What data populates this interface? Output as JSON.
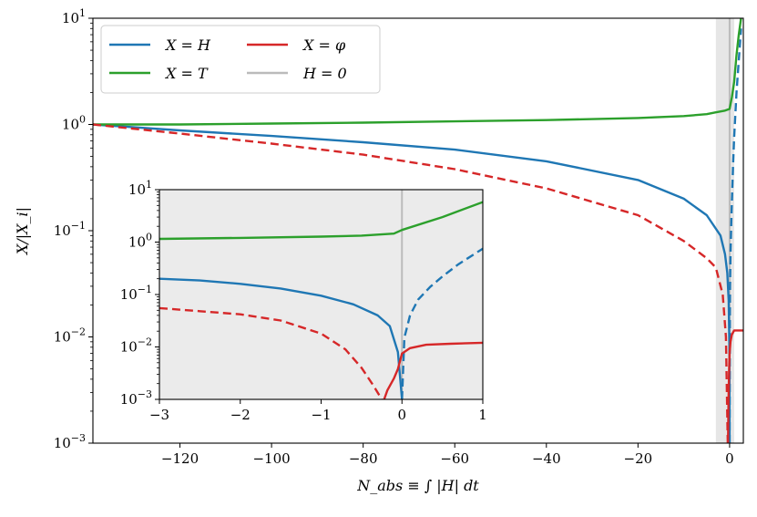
{
  "chart_data": [
    {
      "id": "main",
      "type": "line",
      "xlabel": "N_abs ≡ ∫ |H| dt",
      "ylabel": "X/|X_i|",
      "xlim": [
        -139,
        3
      ],
      "ylim": [
        0.001,
        10
      ],
      "yscale": "log",
      "grid": false,
      "legend_position": "top-left",
      "legend_columns": 2,
      "x_ticks": [
        -120,
        -100,
        -80,
        -60,
        -40,
        -20,
        0
      ],
      "x_tick_labels": [
        "−120",
        "−100",
        "−80",
        "−60",
        "−40",
        "−20",
        "0"
      ],
      "y_ticks": [
        0.001,
        0.01,
        0.1,
        1,
        10
      ],
      "y_tick_labels": [
        {
          "base": "10",
          "exp": "−3"
        },
        {
          "base": "10",
          "exp": "−2"
        },
        {
          "base": "10",
          "exp": "−1"
        },
        {
          "base": "10",
          "exp": "0"
        },
        {
          "base": "10",
          "exp": "1"
        }
      ],
      "shaded_region": {
        "x": [
          -3,
          1
        ],
        "color": "#e6e6e6"
      },
      "vline": {
        "x": 0,
        "name": "H = 0",
        "color": "#bbbbbb"
      },
      "series": [
        {
          "name": "X = H",
          "color": "#1f77b4",
          "style": "solid",
          "x": [
            -139,
            -120,
            -100,
            -80,
            -60,
            -40,
            -20,
            -10,
            -5,
            -2,
            -1,
            -0.5,
            -0.2,
            -0.05,
            0
          ],
          "y": [
            1,
            0.88,
            0.78,
            0.68,
            0.58,
            0.45,
            0.3,
            0.2,
            0.14,
            0.09,
            0.06,
            0.04,
            0.022,
            0.008,
            0.001
          ]
        },
        {
          "name": "X = H",
          "color": "#1f77b4",
          "style": "dashed",
          "x": [
            0,
            0.05,
            0.1,
            0.2,
            0.4,
            0.6,
            0.8,
            1,
            1.5,
            2.5
          ],
          "y": [
            0.001,
            0.015,
            0.03,
            0.06,
            0.13,
            0.25,
            0.45,
            0.75,
            2,
            8
          ]
        },
        {
          "name": "X = T",
          "color": "#2ca02c",
          "style": "solid",
          "x": [
            -139,
            -120,
            -100,
            -80,
            -60,
            -40,
            -20,
            -10,
            -5,
            -3,
            -1,
            0,
            0.5,
            1,
            1.5,
            2,
            2.5
          ],
          "y": [
            1,
            1,
            1.02,
            1.04,
            1.07,
            1.1,
            1.15,
            1.2,
            1.25,
            1.3,
            1.35,
            1.4,
            1.8,
            2.5,
            4.5,
            7,
            10
          ]
        },
        {
          "name": "X = φ",
          "color": "#d62728",
          "style": "dashed",
          "x": [
            -139,
            -120,
            -100,
            -80,
            -60,
            -40,
            -20,
            -10,
            -5,
            -3,
            -1.5,
            -0.8,
            -0.4
          ],
          "y": [
            1,
            0.82,
            0.66,
            0.52,
            0.38,
            0.25,
            0.14,
            0.08,
            0.055,
            0.045,
            0.025,
            0.01,
            0.001
          ]
        },
        {
          "name": "X = φ",
          "color": "#d62728",
          "style": "solid",
          "x": [
            -0.35,
            -0.25,
            -0.1,
            0,
            0.2,
            0.5,
            1,
            3
          ],
          "y": [
            0.001,
            0.0025,
            0.005,
            0.007,
            0.009,
            0.0105,
            0.0115,
            0.0115
          ]
        }
      ],
      "legend": [
        {
          "label": "X = H",
          "color": "#1f77b4"
        },
        {
          "label": "X = T",
          "color": "#2ca02c"
        },
        {
          "label": "X = φ",
          "color": "#d62728"
        },
        {
          "label": "H = 0",
          "color": "#bbbbbb"
        }
      ]
    },
    {
      "id": "inset",
      "type": "line",
      "xlim": [
        -3,
        1
      ],
      "ylim": [
        0.001,
        10
      ],
      "yscale": "log",
      "background": "#ebebeb",
      "x_ticks": [
        -3,
        -2,
        -1,
        0,
        1
      ],
      "x_tick_labels": [
        "−3",
        "−2",
        "−1",
        "0",
        "1"
      ],
      "y_ticks": [
        0.001,
        0.01,
        0.1,
        1,
        10
      ],
      "y_tick_labels": [
        {
          "base": "10",
          "exp": "−3"
        },
        {
          "base": "10",
          "exp": "−2"
        },
        {
          "base": "10",
          "exp": "−1"
        },
        {
          "base": "10",
          "exp": "0"
        },
        {
          "base": "10",
          "exp": "1"
        }
      ],
      "vline": {
        "x": 0,
        "color": "#bbbbbb"
      },
      "series": [
        {
          "name": "X = H",
          "color": "#1f77b4",
          "style": "solid",
          "x": [
            -3,
            -2.5,
            -2,
            -1.5,
            -1,
            -0.6,
            -0.3,
            -0.15,
            -0.05,
            0
          ],
          "y": [
            0.2,
            0.185,
            0.16,
            0.13,
            0.095,
            0.065,
            0.04,
            0.025,
            0.008,
            0.001
          ]
        },
        {
          "name": "X = H",
          "color": "#1f77b4",
          "style": "dashed",
          "x": [
            0,
            0.03,
            0.1,
            0.2,
            0.35,
            0.5,
            0.7,
            1
          ],
          "y": [
            0.001,
            0.015,
            0.04,
            0.08,
            0.14,
            0.22,
            0.38,
            0.75
          ]
        },
        {
          "name": "X = T",
          "color": "#2ca02c",
          "style": "solid",
          "x": [
            -3,
            -2,
            -1,
            -0.5,
            -0.1,
            0,
            0.5,
            1
          ],
          "y": [
            1.15,
            1.2,
            1.27,
            1.33,
            1.45,
            1.7,
            3,
            5.8
          ]
        },
        {
          "name": "X = φ",
          "color": "#d62728",
          "style": "dashed",
          "x": [
            -3,
            -2.5,
            -2,
            -1.5,
            -1,
            -0.7,
            -0.5,
            -0.35,
            -0.25
          ],
          "y": [
            0.055,
            0.048,
            0.042,
            0.032,
            0.018,
            0.009,
            0.004,
            0.0018,
            0.001
          ]
        },
        {
          "name": "X = φ",
          "color": "#d62728",
          "style": "solid",
          "x": [
            -0.22,
            -0.18,
            -0.1,
            -0.05,
            0,
            0.1,
            0.3,
            0.6,
            1
          ],
          "y": [
            0.001,
            0.0015,
            0.0025,
            0.0038,
            0.0075,
            0.0095,
            0.011,
            0.0115,
            0.012
          ]
        }
      ]
    }
  ]
}
